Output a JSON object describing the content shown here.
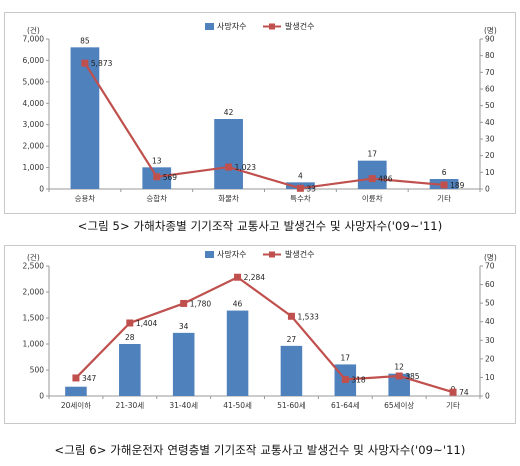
{
  "chart_data": [
    {
      "type": "bar",
      "title": "<그림 5> 가해차종별 기기조작 교통사고 발생건수 및 사망자수('09~'11)",
      "left_unit": "(건)",
      "right_unit": "(명)",
      "categories": [
        "승용차",
        "승합차",
        "화물차",
        "특수차",
        "이륜차",
        "기타"
      ],
      "series": [
        {
          "name": "사망자수",
          "type": "bar",
          "axis": "right",
          "values": [
            85,
            13,
            42,
            4,
            17,
            6
          ],
          "color": "#4f81bd"
        },
        {
          "name": "발생건수",
          "type": "line",
          "axis": "left",
          "values": [
            5873,
            569,
            1023,
            33,
            486,
            189
          ],
          "color": "#c0504d"
        }
      ],
      "bar_labels": [
        "85",
        "13",
        "42",
        "4",
        "17",
        "6"
      ],
      "line_labels": [
        "5,873",
        "569",
        "1,023",
        "33",
        "486",
        "189"
      ],
      "left_ticks": [
        "0",
        "1,000",
        "2,000",
        "3,000",
        "4,000",
        "5,000",
        "6,000",
        "7,000"
      ],
      "right_ticks": [
        "0",
        "10",
        "20",
        "30",
        "40",
        "50",
        "60",
        "70",
        "80",
        "90"
      ],
      "ylim_left": [
        0,
        7000
      ],
      "ylim_right": [
        0,
        90
      ],
      "legend": "top-center",
      "grid": false
    },
    {
      "type": "bar",
      "title": "<그림 6> 가해운전자 연령층별 기기조작 교통사고 발생건수 및 사망자수('09~'11)",
      "left_unit": "(건)",
      "right_unit": "(명)",
      "categories": [
        "20세이하",
        "21-30세",
        "31-40세",
        "41-50세",
        "51-60세",
        "61-64세",
        "65세이상",
        "기타"
      ],
      "series": [
        {
          "name": "사망자수",
          "type": "bar",
          "axis": "right",
          "values": [
            5,
            28,
            34,
            46,
            27,
            17,
            12,
            0
          ],
          "color": "#4f81bd"
        },
        {
          "name": "발생건수",
          "type": "line",
          "axis": "left",
          "values": [
            347,
            1404,
            1780,
            2284,
            1533,
            318,
            385,
            74
          ],
          "color": "#c0504d"
        }
      ],
      "bar_labels": [
        "",
        "28",
        "34",
        "46",
        "27",
        "17",
        "12",
        "0"
      ],
      "line_labels": [
        "347",
        "1,404",
        "1,780",
        "2,284",
        "1,533",
        "318",
        "385",
        "74"
      ],
      "left_ticks": [
        "0",
        "500",
        "1,000",
        "1,500",
        "2,000",
        "2,500"
      ],
      "right_ticks": [
        "0",
        "10",
        "20",
        "30",
        "40",
        "50",
        "60",
        "70"
      ],
      "ylim_left": [
        0,
        2500
      ],
      "ylim_right": [
        0,
        70
      ],
      "legend": "top-center",
      "grid": false
    }
  ]
}
